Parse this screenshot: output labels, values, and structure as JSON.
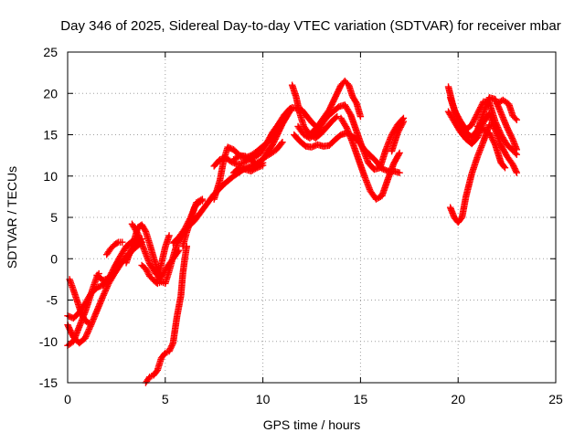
{
  "chart_data": {
    "type": "scatter",
    "title": "Day 346 of 2025, Sidereal Day-to-day VTEC variation (SDTVAR) for receiver mbar",
    "xlabel": "GPS time / hours",
    "ylabel": "SDTVAR / TECUs",
    "xlim": [
      0,
      25
    ],
    "ylim": [
      -15,
      25
    ],
    "xticks": [
      "0",
      "5",
      "10",
      "15",
      "20",
      "25"
    ],
    "yticks": [
      "-15",
      "-10",
      "-5",
      "0",
      "5",
      "10",
      "15",
      "20",
      "25"
    ],
    "grid": true,
    "marker": "plus",
    "color": "#ff0000",
    "traces": [
      [
        [
          0.0,
          -8.0
        ],
        [
          0.3,
          -9.5
        ],
        [
          0.6,
          -10.2
        ],
        [
          0.9,
          -9.6
        ],
        [
          1.2,
          -8.0
        ],
        [
          1.5,
          -6.3
        ],
        [
          1.8,
          -4.6
        ],
        [
          2.1,
          -3.0
        ],
        [
          2.4,
          -1.8
        ],
        [
          2.7,
          -0.7
        ],
        [
          3.0,
          0.3
        ],
        [
          3.3,
          1.0
        ],
        [
          3.6,
          1.6
        ],
        [
          3.8,
          2.0
        ]
      ],
      [
        [
          0.0,
          -10.5
        ],
        [
          0.3,
          -10.0
        ],
        [
          0.5,
          -8.8
        ],
        [
          0.7,
          -7.6
        ],
        [
          0.9,
          -6.4
        ],
        [
          1.1,
          -5.0
        ],
        [
          1.3,
          -3.5
        ],
        [
          1.5,
          -2.2
        ],
        [
          1.6,
          -1.8
        ]
      ],
      [
        [
          0.1,
          -2.5
        ],
        [
          0.3,
          -3.8
        ],
        [
          0.5,
          -5.2
        ],
        [
          0.7,
          -6.6
        ],
        [
          0.9,
          -7.5
        ],
        [
          1.1,
          -7.8
        ]
      ],
      [
        [
          0.0,
          -6.9
        ],
        [
          0.3,
          -7.2
        ],
        [
          0.6,
          -6.5
        ],
        [
          0.9,
          -5.4
        ],
        [
          1.2,
          -4.2
        ],
        [
          1.5,
          -3.5
        ],
        [
          1.8,
          -3.2
        ],
        [
          2.1,
          -2.4
        ],
        [
          2.4,
          -1.4
        ],
        [
          2.7,
          -0.6
        ],
        [
          3.0,
          0.0
        ],
        [
          3.3,
          1.0
        ],
        [
          3.6,
          2.0
        ],
        [
          3.8,
          2.4
        ]
      ],
      [
        [
          1.5,
          -2.0
        ],
        [
          1.8,
          -2.6
        ],
        [
          2.1,
          -2.4
        ],
        [
          2.4,
          -1.0
        ],
        [
          2.7,
          0.3
        ],
        [
          3.0,
          1.5
        ],
        [
          3.3,
          2.1
        ],
        [
          3.6,
          2.4
        ]
      ],
      [
        [
          2.0,
          0.5
        ],
        [
          2.2,
          1.2
        ],
        [
          2.4,
          1.7
        ],
        [
          2.6,
          2.0
        ],
        [
          2.8,
          2.0
        ]
      ],
      [
        [
          3.0,
          -0.5
        ],
        [
          3.2,
          0.8
        ],
        [
          3.4,
          2.2
        ],
        [
          3.6,
          3.8
        ],
        [
          3.8,
          4.1
        ],
        [
          4.0,
          3.3
        ],
        [
          4.2,
          1.8
        ],
        [
          4.4,
          0.2
        ],
        [
          4.6,
          -1.4
        ],
        [
          4.8,
          -2.8
        ],
        [
          5.0,
          -3.0
        ],
        [
          5.2,
          -1.5
        ],
        [
          5.4,
          0.2
        ],
        [
          5.6,
          1.8
        ],
        [
          5.8,
          2.8
        ],
        [
          6.0,
          3.4
        ]
      ],
      [
        [
          3.3,
          4.2
        ],
        [
          3.6,
          3.0
        ],
        [
          3.9,
          1.2
        ],
        [
          4.2,
          -0.6
        ],
        [
          4.5,
          -1.8
        ],
        [
          4.8,
          -2.2
        ],
        [
          5.1,
          -1.0
        ],
        [
          5.4,
          0.0
        ],
        [
          5.7,
          1.0
        ]
      ],
      [
        [
          3.8,
          -0.8
        ],
        [
          4.0,
          -1.2
        ],
        [
          4.2,
          -2.1
        ],
        [
          4.4,
          -2.6
        ],
        [
          4.6,
          -3.0
        ],
        [
          4.8,
          -2.8
        ]
      ],
      [
        [
          4.6,
          -2.6
        ],
        [
          4.8,
          -0.6
        ],
        [
          5.0,
          1.4
        ],
        [
          5.2,
          2.8
        ]
      ],
      [
        [
          4.0,
          -15.0
        ],
        [
          4.2,
          -14.3
        ],
        [
          4.4,
          -14.1
        ],
        [
          4.6,
          -13.5
        ],
        [
          4.8,
          -12.0
        ],
        [
          5.0,
          -11.4
        ],
        [
          5.2,
          -11.2
        ],
        [
          5.4,
          -10.2
        ],
        [
          5.6,
          -7.0
        ],
        [
          5.8,
          -4.5
        ],
        [
          5.9,
          -1.8
        ],
        [
          6.0,
          0.0
        ],
        [
          6.1,
          1.5
        ]
      ],
      [
        [
          5.9,
          1.5
        ],
        [
          6.1,
          3.2
        ],
        [
          6.3,
          4.6
        ],
        [
          6.5,
          6.2
        ],
        [
          6.7,
          6.8
        ],
        [
          6.9,
          7.0
        ]
      ],
      [
        [
          5.4,
          1.9
        ],
        [
          5.7,
          2.6
        ],
        [
          6.0,
          3.6
        ],
        [
          6.3,
          5.0
        ],
        [
          6.6,
          6.8
        ],
        [
          6.9,
          7.2
        ]
      ],
      [
        [
          5.7,
          2.2
        ],
        [
          6.0,
          3.5
        ],
        [
          6.5,
          4.6
        ],
        [
          7.0,
          6.2
        ],
        [
          7.5,
          7.8
        ],
        [
          8.0,
          9.0
        ],
        [
          8.5,
          10.0
        ],
        [
          9.0,
          10.8
        ],
        [
          9.5,
          11.3
        ],
        [
          10.0,
          12.0
        ],
        [
          10.5,
          13.8
        ],
        [
          11.0,
          16.3
        ],
        [
          11.5,
          18.3
        ],
        [
          12.0,
          18.0
        ],
        [
          12.5,
          16.5
        ],
        [
          13.0,
          15.4
        ]
      ],
      [
        [
          7.5,
          7.2
        ],
        [
          7.8,
          9.5
        ],
        [
          8.0,
          12.0
        ],
        [
          8.2,
          13.5
        ],
        [
          8.5,
          13.2
        ],
        [
          8.8,
          12.5
        ],
        [
          9.1,
          12.4
        ],
        [
          9.4,
          12.0
        ],
        [
          9.7,
          11.2
        ],
        [
          10.0,
          11.6
        ]
      ],
      [
        [
          7.5,
          11.2
        ],
        [
          7.8,
          12.0
        ],
        [
          8.1,
          12.2
        ],
        [
          8.4,
          11.7
        ],
        [
          8.7,
          11.4
        ],
        [
          9.0,
          11.6
        ],
        [
          9.3,
          12.0
        ],
        [
          9.6,
          12.3
        ],
        [
          9.9,
          12.8
        ],
        [
          10.2,
          14.0
        ],
        [
          10.5,
          15.3
        ],
        [
          10.8,
          16.3
        ],
        [
          11.1,
          17.4
        ],
        [
          11.4,
          18.2
        ]
      ],
      [
        [
          9.5,
          11.2
        ],
        [
          9.8,
          11.6
        ],
        [
          10.1,
          12.3
        ],
        [
          10.4,
          12.7
        ],
        [
          10.7,
          13.2
        ],
        [
          11.0,
          14.1
        ]
      ],
      [
        [
          8.5,
          10.4
        ],
        [
          8.8,
          11.0
        ],
        [
          9.1,
          10.8
        ],
        [
          9.4,
          10.6
        ],
        [
          9.7,
          11.0
        ],
        [
          10.0,
          11.3
        ]
      ],
      [
        [
          8.5,
          12.0
        ],
        [
          8.8,
          12.4
        ],
        [
          9.1,
          12.2
        ],
        [
          9.4,
          12.5
        ],
        [
          9.7,
          13.0
        ],
        [
          10.0,
          13.6
        ],
        [
          10.3,
          14.2
        ],
        [
          10.6,
          15.0
        ],
        [
          10.9,
          16.2
        ],
        [
          11.2,
          17.2
        ]
      ],
      [
        [
          11.5,
          21.0
        ],
        [
          11.7,
          19.6
        ],
        [
          11.9,
          17.5
        ],
        [
          12.1,
          16.0
        ],
        [
          12.4,
          15.0
        ],
        [
          12.7,
          14.6
        ],
        [
          13.0,
          15.2
        ],
        [
          13.3,
          16.0
        ],
        [
          13.6,
          16.8
        ],
        [
          13.8,
          17.2
        ]
      ],
      [
        [
          11.8,
          16.0
        ],
        [
          12.1,
          15.0
        ],
        [
          12.4,
          14.6
        ],
        [
          12.7,
          15.1
        ],
        [
          13.0,
          16.2
        ],
        [
          13.3,
          17.2
        ],
        [
          13.6,
          17.8
        ],
        [
          13.9,
          18.4
        ],
        [
          14.2,
          18.6
        ],
        [
          14.5,
          17.4
        ],
        [
          14.8,
          15.4
        ],
        [
          15.1,
          13.4
        ],
        [
          15.4,
          11.6
        ],
        [
          15.7,
          10.8
        ],
        [
          16.0,
          11.0
        ],
        [
          16.3,
          13.2
        ],
        [
          16.6,
          15.0
        ],
        [
          16.9,
          16.2
        ],
        [
          17.2,
          17.0
        ]
      ],
      [
        [
          11.6,
          15.0
        ],
        [
          11.9,
          14.2
        ],
        [
          12.2,
          13.6
        ],
        [
          12.5,
          13.5
        ],
        [
          12.8,
          13.8
        ],
        [
          13.1,
          13.6
        ],
        [
          13.4,
          13.7
        ],
        [
          13.7,
          14.4
        ],
        [
          14.0,
          15.0
        ],
        [
          14.3,
          15.2
        ],
        [
          14.6,
          14.8
        ],
        [
          14.9,
          14.2
        ],
        [
          15.2,
          13.2
        ],
        [
          15.5,
          12.5
        ],
        [
          15.8,
          11.8
        ],
        [
          16.1,
          10.9
        ],
        [
          16.4,
          10.6
        ],
        [
          16.7,
          10.6
        ],
        [
          17.0,
          10.4
        ]
      ],
      [
        [
          12.5,
          15.2
        ],
        [
          12.8,
          16.0
        ],
        [
          13.1,
          17.0
        ],
        [
          13.4,
          18.0
        ],
        [
          13.7,
          19.5
        ],
        [
          14.0,
          21.0
        ],
        [
          14.2,
          21.5
        ],
        [
          14.4,
          21.0
        ],
        [
          14.6,
          19.6
        ],
        [
          14.8,
          18.8
        ],
        [
          15.0,
          17.2
        ]
      ],
      [
        [
          14.0,
          17.0
        ],
        [
          14.3,
          15.8
        ],
        [
          14.6,
          14.0
        ],
        [
          14.9,
          12.0
        ],
        [
          15.2,
          10.0
        ],
        [
          15.5,
          8.2
        ],
        [
          15.8,
          7.2
        ],
        [
          16.1,
          7.6
        ],
        [
          16.4,
          9.6
        ],
        [
          16.7,
          11.5
        ],
        [
          17.0,
          12.8
        ]
      ],
      [
        [
          16.6,
          13.0
        ],
        [
          16.9,
          15.2
        ],
        [
          17.2,
          16.6
        ]
      ],
      [
        [
          19.5,
          20.8
        ],
        [
          19.7,
          18.9
        ],
        [
          19.9,
          17.4
        ],
        [
          20.1,
          16.3
        ],
        [
          20.4,
          15.3
        ],
        [
          20.7,
          14.7
        ],
        [
          21.0,
          15.6
        ],
        [
          21.3,
          17.6
        ],
        [
          21.6,
          19.5
        ],
        [
          21.9,
          19.3
        ],
        [
          22.2,
          17.6
        ],
        [
          22.5,
          15.9
        ],
        [
          22.8,
          14.4
        ],
        [
          23.0,
          13.2
        ]
      ],
      [
        [
          19.6,
          19.5
        ],
        [
          19.8,
          18.0
        ],
        [
          20.1,
          16.7
        ],
        [
          20.4,
          15.6
        ],
        [
          20.7,
          16.2
        ],
        [
          21.0,
          17.6
        ],
        [
          21.3,
          19.0
        ],
        [
          21.6,
          18.9
        ],
        [
          21.9,
          16.6
        ],
        [
          22.2,
          15.0
        ],
        [
          22.5,
          13.8
        ],
        [
          22.8,
          13.1
        ],
        [
          23.0,
          12.6
        ]
      ],
      [
        [
          19.5,
          17.8
        ],
        [
          19.8,
          16.6
        ],
        [
          20.1,
          15.4
        ],
        [
          20.4,
          14.5
        ],
        [
          20.7,
          13.9
        ],
        [
          21.0,
          14.7
        ],
        [
          21.3,
          16.5
        ],
        [
          21.6,
          17.6
        ],
        [
          21.9,
          15.6
        ],
        [
          22.2,
          13.7
        ],
        [
          22.5,
          12.4
        ],
        [
          22.8,
          11.4
        ],
        [
          23.0,
          10.4
        ]
      ],
      [
        [
          19.6,
          6.2
        ],
        [
          19.8,
          5.0
        ],
        [
          20.0,
          4.4
        ],
        [
          20.2,
          5.0
        ],
        [
          20.4,
          7.5
        ],
        [
          20.7,
          10.3
        ],
        [
          21.0,
          12.4
        ],
        [
          21.3,
          14.2
        ],
        [
          21.6,
          16.2
        ],
        [
          21.8,
          16.0
        ]
      ],
      [
        [
          21.0,
          16.0
        ],
        [
          21.3,
          15.6
        ],
        [
          21.6,
          15.2
        ],
        [
          21.9,
          13.8
        ],
        [
          22.2,
          11.6
        ],
        [
          22.4,
          11.0
        ]
      ],
      [
        [
          22.0,
          18.8
        ],
        [
          22.3,
          19.2
        ],
        [
          22.6,
          18.7
        ],
        [
          22.8,
          17.3
        ],
        [
          23.0,
          16.8
        ]
      ]
    ]
  }
}
